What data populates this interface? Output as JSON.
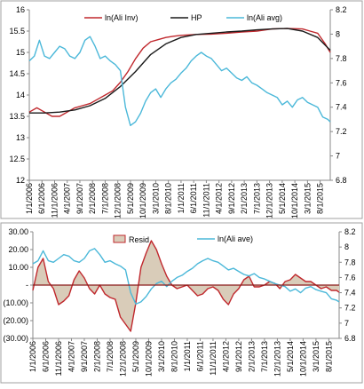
{
  "colors": {
    "inv": "#c0282d",
    "hp": "#1a1a1a",
    "avg": "#4bb8d9",
    "resid_line": "#c0282d",
    "resid_fill": "#d9ccb9",
    "zero": "#8b1a1a",
    "frame": "#a0a0a0"
  },
  "x_labels": [
    "1/1/2006",
    "6/1/2006",
    "11/1/2006",
    "4/1/2007",
    "9/1/2007",
    "2/1/2008",
    "7/1/2008",
    "12/1/2008",
    "5/1/2009",
    "10/1/2009",
    "3/1/2010",
    "8/1/2010",
    "1/1/2011",
    "6/1/2011",
    "11/1/2011",
    "4/1/2012",
    "9/1/2012",
    "2/1/2013",
    "7/1/2013",
    "12/1/2013",
    "5/1/2014",
    "10/1/2014",
    "3/1/2015",
    "8/1/2015"
  ],
  "chart_data": [
    {
      "type": "line",
      "x_start": "2006-01",
      "x_end": "2015-12",
      "x_step": "month",
      "ylim_left": [
        12,
        16
      ],
      "yticks_left": [
        "12",
        "12.5",
        "13",
        "13.5",
        "14",
        "14.5",
        "15",
        "15.5",
        "16"
      ],
      "ylim_right": [
        6.8,
        8.2
      ],
      "yticks_right": [
        "6.8",
        "7",
        "7.2",
        "7.4",
        "7.6",
        "7.8",
        "8",
        "8.2"
      ],
      "legend": [
        "ln(Ali Inv)",
        "HP",
        "ln(Ali avg)"
      ],
      "legend_placement": "top",
      "series": [
        {
          "name": "ln(Ali Inv)",
          "axis": "left",
          "color_key": "inv",
          "points": [
            [
              0,
              13.6
            ],
            [
              3,
              13.7
            ],
            [
              6,
              13.6
            ],
            [
              9,
              13.5
            ],
            [
              12,
              13.5
            ],
            [
              15,
              13.6
            ],
            [
              18,
              13.7
            ],
            [
              21,
              13.75
            ],
            [
              24,
              13.8
            ],
            [
              27,
              13.9
            ],
            [
              30,
              14.0
            ],
            [
              33,
              14.1
            ],
            [
              36,
              14.3
            ],
            [
              39,
              14.55
            ],
            [
              42,
              14.85
            ],
            [
              45,
              15.1
            ],
            [
              48,
              15.25
            ],
            [
              51,
              15.3
            ],
            [
              54,
              15.35
            ],
            [
              57,
              15.38
            ],
            [
              60,
              15.4
            ],
            [
              66,
              15.42
            ],
            [
              72,
              15.43
            ],
            [
              78,
              15.45
            ],
            [
              84,
              15.48
            ],
            [
              90,
              15.5
            ],
            [
              96,
              15.55
            ],
            [
              102,
              15.56
            ],
            [
              108,
              15.55
            ],
            [
              111,
              15.5
            ],
            [
              114,
              15.45
            ],
            [
              117,
              15.2
            ],
            [
              119,
              15.0
            ]
          ]
        },
        {
          "name": "HP",
          "axis": "left",
          "color_key": "hp",
          "points": [
            [
              0,
              13.58
            ],
            [
              6,
              13.58
            ],
            [
              12,
              13.6
            ],
            [
              18,
              13.65
            ],
            [
              24,
              13.75
            ],
            [
              30,
              13.92
            ],
            [
              36,
              14.2
            ],
            [
              42,
              14.55
            ],
            [
              48,
              14.95
            ],
            [
              54,
              15.2
            ],
            [
              60,
              15.35
            ],
            [
              66,
              15.42
            ],
            [
              72,
              15.45
            ],
            [
              78,
              15.48
            ],
            [
              84,
              15.5
            ],
            [
              90,
              15.53
            ],
            [
              96,
              15.55
            ],
            [
              102,
              15.56
            ],
            [
              108,
              15.5
            ],
            [
              114,
              15.35
            ],
            [
              119,
              15.05
            ]
          ]
        },
        {
          "name": "ln(Ali avg)",
          "axis": "right",
          "color_key": "avg",
          "points": [
            [
              0,
              7.78
            ],
            [
              2,
              7.82
            ],
            [
              4,
              7.95
            ],
            [
              6,
              7.82
            ],
            [
              8,
              7.8
            ],
            [
              10,
              7.85
            ],
            [
              12,
              7.9
            ],
            [
              14,
              7.88
            ],
            [
              16,
              7.82
            ],
            [
              18,
              7.8
            ],
            [
              20,
              7.85
            ],
            [
              22,
              7.95
            ],
            [
              24,
              7.98
            ],
            [
              26,
              7.9
            ],
            [
              28,
              7.8
            ],
            [
              30,
              7.82
            ],
            [
              32,
              7.78
            ],
            [
              34,
              7.75
            ],
            [
              36,
              7.7
            ],
            [
              38,
              7.4
            ],
            [
              40,
              7.25
            ],
            [
              42,
              7.28
            ],
            [
              44,
              7.35
            ],
            [
              46,
              7.45
            ],
            [
              48,
              7.52
            ],
            [
              50,
              7.55
            ],
            [
              52,
              7.48
            ],
            [
              54,
              7.55
            ],
            [
              56,
              7.6
            ],
            [
              58,
              7.63
            ],
            [
              60,
              7.68
            ],
            [
              62,
              7.72
            ],
            [
              64,
              7.78
            ],
            [
              66,
              7.82
            ],
            [
              68,
              7.85
            ],
            [
              70,
              7.82
            ],
            [
              72,
              7.8
            ],
            [
              74,
              7.75
            ],
            [
              76,
              7.7
            ],
            [
              78,
              7.72
            ],
            [
              80,
              7.68
            ],
            [
              82,
              7.64
            ],
            [
              84,
              7.62
            ],
            [
              86,
              7.65
            ],
            [
              88,
              7.6
            ],
            [
              90,
              7.58
            ],
            [
              92,
              7.55
            ],
            [
              94,
              7.52
            ],
            [
              96,
              7.5
            ],
            [
              98,
              7.48
            ],
            [
              100,
              7.42
            ],
            [
              102,
              7.45
            ],
            [
              104,
              7.4
            ],
            [
              106,
              7.46
            ],
            [
              108,
              7.48
            ],
            [
              110,
              7.44
            ],
            [
              112,
              7.42
            ],
            [
              114,
              7.4
            ],
            [
              116,
              7.32
            ],
            [
              118,
              7.3
            ],
            [
              119,
              7.28
            ]
          ]
        }
      ]
    },
    {
      "type": "area",
      "x_start": "2006-01",
      "x_end": "2015-12",
      "x_step": "month",
      "ylim_left": [
        -30,
        30
      ],
      "yticks_left": [
        "(30.00)",
        "(20.00)",
        "(10.00)",
        "-",
        "10.00",
        "20.00",
        "30.00"
      ],
      "ylim_right": [
        6.8,
        8.2
      ],
      "yticks_right": [
        "6.8",
        "7",
        "7.2",
        "7.4",
        "7.6",
        "7.8",
        "8",
        "8.2"
      ],
      "legend": [
        "Resid",
        "ln(Ali ave)"
      ],
      "legend_placement": "top",
      "series": [
        {
          "name": "Resid",
          "axis": "left",
          "color_key": "resid_line",
          "points": [
            [
              0,
              -3
            ],
            [
              2,
              10
            ],
            [
              4,
              15
            ],
            [
              6,
              2
            ],
            [
              8,
              -2
            ],
            [
              10,
              -11
            ],
            [
              12,
              -9
            ],
            [
              14,
              -6
            ],
            [
              16,
              3
            ],
            [
              18,
              8
            ],
            [
              20,
              4
            ],
            [
              22,
              -2
            ],
            [
              24,
              -5
            ],
            [
              26,
              0
            ],
            [
              28,
              -5
            ],
            [
              30,
              -7
            ],
            [
              32,
              -8
            ],
            [
              34,
              -18
            ],
            [
              36,
              -22
            ],
            [
              38,
              -26
            ],
            [
              40,
              -10
            ],
            [
              42,
              10
            ],
            [
              44,
              18
            ],
            [
              46,
              25
            ],
            [
              48,
              20
            ],
            [
              50,
              12
            ],
            [
              52,
              5
            ],
            [
              54,
              0
            ],
            [
              56,
              -2
            ],
            [
              58,
              -1
            ],
            [
              60,
              0
            ],
            [
              62,
              -3
            ],
            [
              64,
              -6
            ],
            [
              66,
              -5
            ],
            [
              68,
              -2
            ],
            [
              70,
              -1
            ],
            [
              72,
              -3
            ],
            [
              74,
              -8
            ],
            [
              76,
              -11
            ],
            [
              78,
              -5
            ],
            [
              80,
              -2
            ],
            [
              82,
              3
            ],
            [
              84,
              5
            ],
            [
              86,
              -1
            ],
            [
              88,
              -1
            ],
            [
              90,
              0
            ],
            [
              92,
              2
            ],
            [
              94,
              1
            ],
            [
              96,
              -2
            ],
            [
              98,
              2
            ],
            [
              100,
              3
            ],
            [
              102,
              6
            ],
            [
              104,
              4
            ],
            [
              106,
              2
            ],
            [
              108,
              2
            ],
            [
              110,
              0
            ],
            [
              112,
              -2
            ],
            [
              114,
              -1
            ],
            [
              116,
              -3
            ],
            [
              118,
              -3
            ],
            [
              119,
              -4
            ]
          ]
        },
        {
          "name": "ln(Ali ave)",
          "axis": "right",
          "color_key": "avg",
          "points": [
            [
              0,
              7.78
            ],
            [
              2,
              7.82
            ],
            [
              4,
              7.95
            ],
            [
              6,
              7.82
            ],
            [
              8,
              7.8
            ],
            [
              10,
              7.85
            ],
            [
              12,
              7.9
            ],
            [
              14,
              7.88
            ],
            [
              16,
              7.82
            ],
            [
              18,
              7.8
            ],
            [
              20,
              7.85
            ],
            [
              22,
              7.95
            ],
            [
              24,
              7.98
            ],
            [
              26,
              7.9
            ],
            [
              28,
              7.8
            ],
            [
              30,
              7.82
            ],
            [
              32,
              7.78
            ],
            [
              34,
              7.75
            ],
            [
              36,
              7.7
            ],
            [
              38,
              7.4
            ],
            [
              40,
              7.25
            ],
            [
              42,
              7.28
            ],
            [
              44,
              7.35
            ],
            [
              46,
              7.45
            ],
            [
              48,
              7.52
            ],
            [
              50,
              7.55
            ],
            [
              52,
              7.48
            ],
            [
              54,
              7.55
            ],
            [
              56,
              7.6
            ],
            [
              58,
              7.63
            ],
            [
              60,
              7.68
            ],
            [
              62,
              7.72
            ],
            [
              64,
              7.78
            ],
            [
              66,
              7.82
            ],
            [
              68,
              7.85
            ],
            [
              70,
              7.82
            ],
            [
              72,
              7.8
            ],
            [
              74,
              7.75
            ],
            [
              76,
              7.7
            ],
            [
              78,
              7.72
            ],
            [
              80,
              7.68
            ],
            [
              82,
              7.64
            ],
            [
              84,
              7.62
            ],
            [
              86,
              7.65
            ],
            [
              88,
              7.6
            ],
            [
              90,
              7.58
            ],
            [
              92,
              7.55
            ],
            [
              94,
              7.52
            ],
            [
              96,
              7.5
            ],
            [
              98,
              7.48
            ],
            [
              100,
              7.42
            ],
            [
              102,
              7.45
            ],
            [
              104,
              7.4
            ],
            [
              106,
              7.46
            ],
            [
              108,
              7.48
            ],
            [
              110,
              7.44
            ],
            [
              112,
              7.42
            ],
            [
              114,
              7.4
            ],
            [
              116,
              7.32
            ],
            [
              118,
              7.3
            ],
            [
              119,
              7.28
            ]
          ]
        }
      ]
    }
  ]
}
